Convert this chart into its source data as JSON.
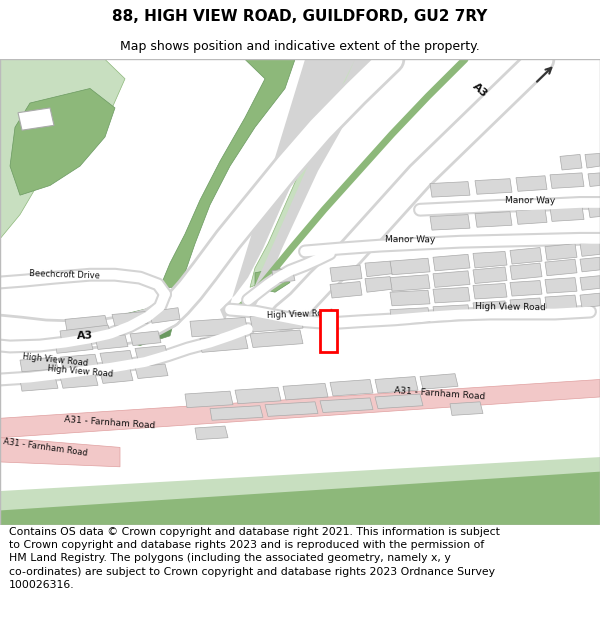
{
  "title": "88, HIGH VIEW ROAD, GUILDFORD, GU2 7RY",
  "subtitle": "Map shows position and indicative extent of the property.",
  "footer": "Contains OS data © Crown copyright and database right 2021. This information is subject\nto Crown copyright and database rights 2023 and is reproduced with the permission of\nHM Land Registry. The polygons (including the associated geometry, namely x, y\nco-ordinates) are subject to Crown copyright and database rights 2023 Ordnance Survey\n100026316.",
  "bg_color": "#ffffff",
  "map_bg": "#f2f2f2",
  "green_light": "#c8dfc0",
  "green_mid": "#8db87a",
  "green_dark": "#6a9960",
  "road_white": "#ffffff",
  "road_gray": "#d4d4d4",
  "a31_pink": "#f2c8c8",
  "a31_pink_edge": "#e0a0a0",
  "building_fill": "#d8d8d8",
  "building_edge": "#aaaaaa",
  "red_plot": "#ff0000",
  "title_fs": 11,
  "subtitle_fs": 9,
  "footer_fs": 7.8
}
